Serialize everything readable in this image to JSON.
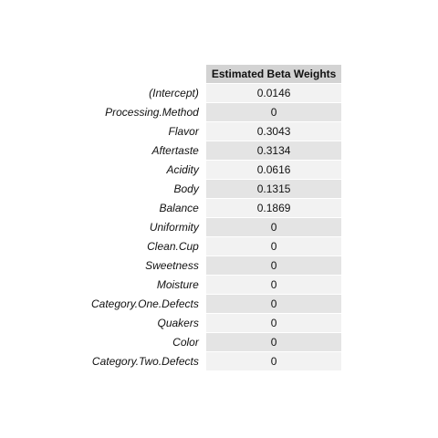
{
  "chart_data": {
    "type": "table",
    "columns": [
      "Estimated Beta Weights"
    ],
    "rows": [
      {
        "label": "(Intercept)",
        "value": "0.0146"
      },
      {
        "label": "Processing.Method",
        "value": "0"
      },
      {
        "label": "Flavor",
        "value": "0.3043"
      },
      {
        "label": "Aftertaste",
        "value": "0.3134"
      },
      {
        "label": "Acidity",
        "value": "0.0616"
      },
      {
        "label": "Body",
        "value": "0.1315"
      },
      {
        "label": "Balance",
        "value": "0.1869"
      },
      {
        "label": "Uniformity",
        "value": "0"
      },
      {
        "label": "Clean.Cup",
        "value": "0"
      },
      {
        "label": "Sweetness",
        "value": "0"
      },
      {
        "label": "Moisture",
        "value": "0"
      },
      {
        "label": "Category.One.Defects",
        "value": "0"
      },
      {
        "label": "Quakers",
        "value": "0"
      },
      {
        "label": "Color",
        "value": "0"
      },
      {
        "label": "Category.Two.Defects",
        "value": "0"
      }
    ],
    "colors": {
      "header_bg": "#d3d3d3",
      "row_light": "#f2f2f2",
      "row_dark": "#e4e4e4",
      "text": "#111111"
    }
  }
}
